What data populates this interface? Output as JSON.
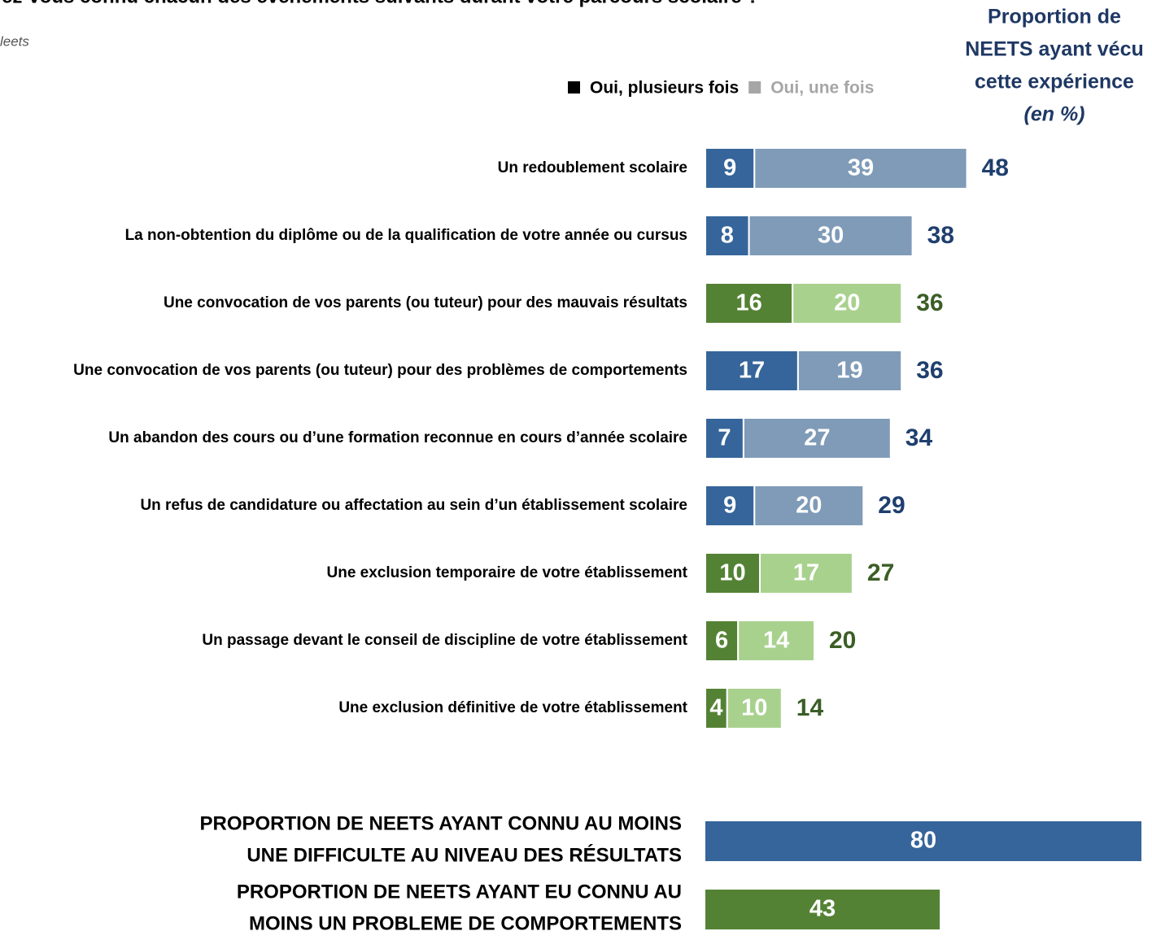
{
  "chart_data": [
    {
      "type": "stacked-bar",
      "title": "ez-vous connu chacun des évènements suivants durant votre parcours scolaire ?",
      "subtitle": "leets",
      "header_lines": [
        "Proportion de",
        "NEETS ayant vécu",
        "cette expérience"
      ],
      "header_unit": "(en %)",
      "categories": [
        "Un redoublement scolaire",
        "La non-obtention du diplôme ou de la qualification de votre année ou cursus",
        "Une convocation de vos parents (ou tuteur) pour des mauvais résultats",
        "Une convocation de vos parents (ou tuteur) pour des problèmes de comportements",
        "Un abandon des cours ou d’une formation reconnue en cours d’année scolaire",
        "Un refus de candidature ou affectation au sein d’un établissement scolaire",
        "Une exclusion temporaire de votre établissement",
        "Un passage devant le conseil de discipline de votre établissement",
        "Une exclusion définitive de votre établissement"
      ],
      "series": [
        {
          "name": "Oui, plusieurs fois",
          "color": "#000000",
          "values": [
            9,
            8,
            16,
            17,
            7,
            9,
            10,
            6,
            4
          ]
        },
        {
          "name": "Oui, une fois",
          "color": "#a6a6a6",
          "values": [
            39,
            30,
            20,
            19,
            27,
            20,
            17,
            14,
            10
          ]
        }
      ],
      "totals": [
        48,
        38,
        36,
        36,
        34,
        29,
        27,
        20,
        14
      ],
      "row_colors": [
        [
          "#35659a",
          "#7f9bb8",
          "#1f3f6e"
        ],
        [
          "#35659a",
          "#7f9bb8",
          "#1f3f6e"
        ],
        [
          "#548235",
          "#a9d18e",
          "#3b5e26"
        ],
        [
          "#35659a",
          "#7f9bb8",
          "#1f3f6e"
        ],
        [
          "#35659a",
          "#7f9bb8",
          "#1f3f6e"
        ],
        [
          "#35659a",
          "#7f9bb8",
          "#1f3f6e"
        ],
        [
          "#548235",
          "#a9d18e",
          "#3b5e26"
        ],
        [
          "#548235",
          "#a9d18e",
          "#3b5e26"
        ],
        [
          "#548235",
          "#a9d18e",
          "#3b5e26"
        ]
      ],
      "xlim": [
        0,
        80
      ]
    },
    {
      "type": "bar",
      "categories": [
        [
          "PROPORTION DE NEETS AYANT CONNU AU MOINS",
          "UNE DIFFICULTE AU NIVEAU DES RÉSULTATS"
        ],
        [
          "PROPORTION DE NEETS AYANT EU CONNU AU",
          "MOINS UN PROBLEME DE COMPORTEMENTS"
        ]
      ],
      "values": [
        80,
        43
      ],
      "colors": [
        "#35659a",
        "#548235"
      ],
      "xlim": [
        0,
        80
      ]
    }
  ]
}
